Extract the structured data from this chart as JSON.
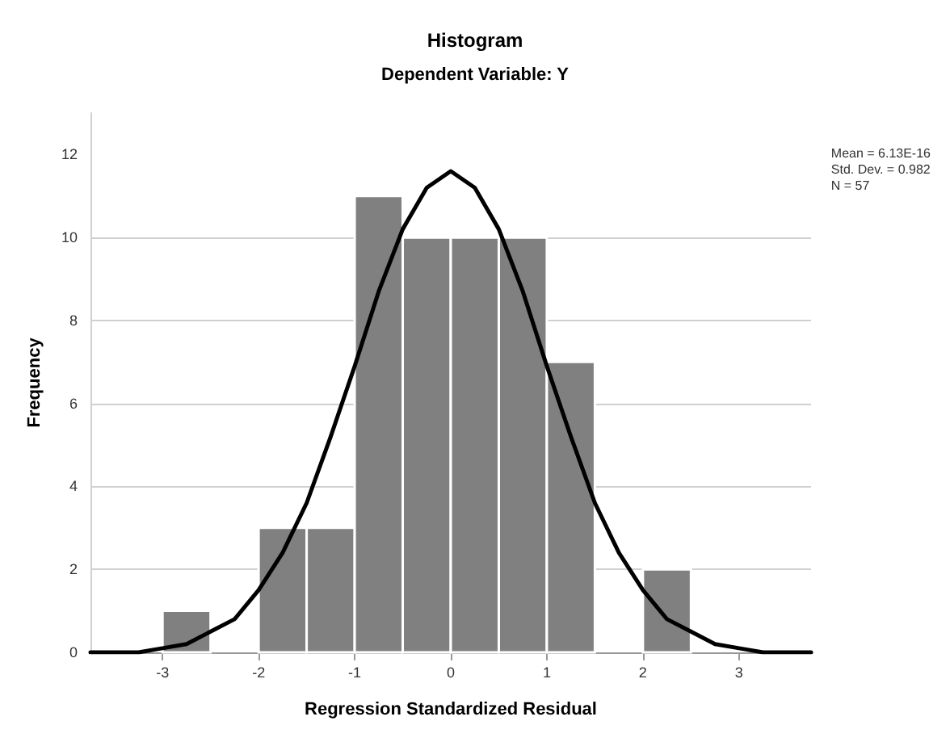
{
  "chart_data": {
    "type": "histogram",
    "title": "Histogram",
    "subtitle": "Dependent Variable: Y",
    "xlabel": "Regression Standardized Residual",
    "ylabel": "Frequency",
    "bins": [
      -3,
      -2.5,
      -2,
      -1.5,
      -1,
      -0.5,
      0,
      0.5,
      1,
      1.5,
      2,
      2.5
    ],
    "series": [
      {
        "color": "#808080",
        "values": [
          1,
          0,
          3,
          3,
          11,
          10,
          10,
          10,
          7,
          0,
          2
        ]
      },
      {
        "type": "line",
        "color": "#000000",
        "x": [
          -3.75,
          -3.5,
          -3.25,
          -3,
          -2.75,
          -2.5,
          -2.25,
          -2,
          -1.75,
          -1.5,
          -1.25,
          -1,
          -0.75,
          -0.5,
          -0.25,
          0,
          0.25,
          0.5,
          0.75,
          1,
          1.25,
          1.5,
          1.75,
          2,
          2.25,
          2.5,
          2.75,
          3,
          3.25,
          3.5,
          3.75
        ],
        "values": [
          0,
          0,
          0,
          0.1,
          0.2,
          0.5,
          0.8,
          1.5,
          2.4,
          3.6,
          5.2,
          6.9,
          8.7,
          10.2,
          11.2,
          11.6,
          11.2,
          10.2,
          8.7,
          6.9,
          5.2,
          3.6,
          2.4,
          1.5,
          0.8,
          0.5,
          0.2,
          0.1,
          0,
          0,
          0
        ]
      }
    ],
    "xlim": [
      -3.75,
      3.75
    ],
    "xticks": [
      -3,
      -2,
      -1,
      0,
      1,
      2,
      3
    ],
    "ylim": [
      0,
      13
    ],
    "yticks": [
      0,
      2,
      4,
      6,
      8,
      10,
      12
    ],
    "grid": "y",
    "marker": "none",
    "line_style": "solid",
    "annotations": [
      "Mean = 6.13E-16",
      "Std. Dev. = 0.982",
      "N = 57"
    ]
  }
}
